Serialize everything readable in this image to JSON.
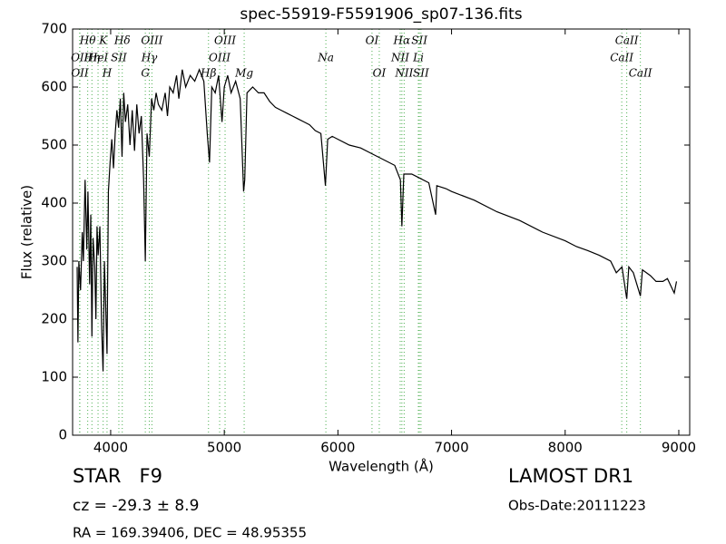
{
  "chart_data": {
    "type": "line",
    "title": "spec-55919-F5591906_sp07-136.fits",
    "x_label": "Wavelength (Å)",
    "y_label": "Flux (relative)",
    "xlim": [
      3665,
      9096
    ],
    "ylim": [
      0,
      700
    ],
    "xticks": [
      4000,
      5000,
      6000,
      7000,
      8000,
      9000
    ],
    "yticks": [
      0,
      100,
      200,
      300,
      400,
      500,
      600,
      700
    ],
    "color": "#000000",
    "line_color": "#4caf50",
    "x": [
      3705,
      3712,
      3720,
      3735,
      3750,
      3760,
      3775,
      3790,
      3800,
      3815,
      3825,
      3835,
      3845,
      3860,
      3870,
      3880,
      3890,
      3905,
      3920,
      3933,
      3945,
      3955,
      3968,
      3980,
      3995,
      4010,
      4025,
      4040,
      4055,
      4070,
      4085,
      4100,
      4115,
      4130,
      4150,
      4170,
      4190,
      4210,
      4230,
      4250,
      4270,
      4290,
      4305,
      4320,
      4340,
      4360,
      4380,
      4400,
      4420,
      4450,
      4480,
      4500,
      4520,
      4550,
      4580,
      4600,
      4630,
      4660,
      4700,
      4740,
      4780,
      4820,
      4850,
      4870,
      4890,
      4920,
      4950,
      4980,
      5000,
      5030,
      5060,
      5100,
      5140,
      5170,
      5180,
      5200,
      5250,
      5300,
      5350,
      5400,
      5450,
      5500,
      5550,
      5600,
      5650,
      5700,
      5750,
      5800,
      5850,
      5890,
      5910,
      5950,
      6000,
      6100,
      6200,
      6300,
      6400,
      6500,
      6550,
      6563,
      6580,
      6650,
      6700,
      6800,
      6860,
      6870,
      6950,
      7000,
      7200,
      7400,
      7600,
      7800,
      8000,
      8100,
      8200,
      8300,
      8400,
      8450,
      8500,
      8542,
      8560,
      8600,
      8662,
      8680,
      8750,
      8800,
      8860,
      8900,
      8960,
      8980
    ],
    "values": [
      290,
      160,
      300,
      250,
      350,
      300,
      440,
      320,
      420,
      260,
      380,
      170,
      340,
      290,
      200,
      360,
      310,
      360,
      190,
      110,
      300,
      230,
      140,
      420,
      470,
      510,
      460,
      520,
      560,
      530,
      580,
      480,
      590,
      540,
      570,
      500,
      560,
      490,
      570,
      520,
      550,
      440,
      300,
      520,
      480,
      580,
      560,
      590,
      570,
      560,
      590,
      550,
      600,
      590,
      620,
      580,
      630,
      600,
      620,
      610,
      630,
      610,
      520,
      470,
      600,
      590,
      620,
      540,
      600,
      620,
      590,
      610,
      580,
      420,
      440,
      590,
      600,
      590,
      590,
      575,
      565,
      560,
      555,
      550,
      545,
      540,
      535,
      525,
      520,
      430,
      510,
      515,
      510,
      500,
      495,
      485,
      475,
      465,
      440,
      360,
      450,
      450,
      445,
      435,
      380,
      430,
      425,
      420,
      405,
      385,
      370,
      350,
      335,
      325,
      318,
      310,
      300,
      280,
      290,
      235,
      290,
      280,
      240,
      285,
      275,
      265,
      265,
      270,
      245,
      265
    ],
    "lines": [
      {
        "label": "OII",
        "x": 3727
      },
      {
        "label": "OII",
        "x": 3729
      },
      {
        "label": "Hθ",
        "x": 3798
      },
      {
        "label": "Hη",
        "x": 3835
      },
      {
        "label": "HeI",
        "x": 3889
      },
      {
        "label": "K",
        "x": 3934
      },
      {
        "label": "H",
        "x": 3968
      },
      {
        "label": "SII",
        "x": 4072
      },
      {
        "label": "Hδ",
        "x": 4102
      },
      {
        "label": "G",
        "x": 4305
      },
      {
        "label": "Hγ",
        "x": 4340
      },
      {
        "label": "OIII",
        "x": 4363
      },
      {
        "label": "Hβ",
        "x": 4861
      },
      {
        "label": "OIII",
        "x": 4959
      },
      {
        "label": "OIII",
        "x": 5007
      },
      {
        "label": "Mg",
        "x": 5175
      },
      {
        "label": "Na",
        "x": 5894
      },
      {
        "label": "OI",
        "x": 6300
      },
      {
        "label": "OI",
        "x": 6364
      },
      {
        "label": "NII",
        "x": 6548
      },
      {
        "label": "Hα",
        "x": 6563
      },
      {
        "label": "NII",
        "x": 6583
      },
      {
        "label": "Li",
        "x": 6708
      },
      {
        "label": "SII",
        "x": 6717
      },
      {
        "label": "SII",
        "x": 6731
      },
      {
        "label": "CaII",
        "x": 8498
      },
      {
        "label": "CaII",
        "x": 8542
      },
      {
        "label": "CaII",
        "x": 8662
      }
    ],
    "annotations": [
      "STAR   F9",
      "cz = -29.3 ± 8.9",
      "RA = 169.39406, DEC = 48.95355",
      "LAMOST DR1",
      "Obs-Date:20111223"
    ]
  }
}
